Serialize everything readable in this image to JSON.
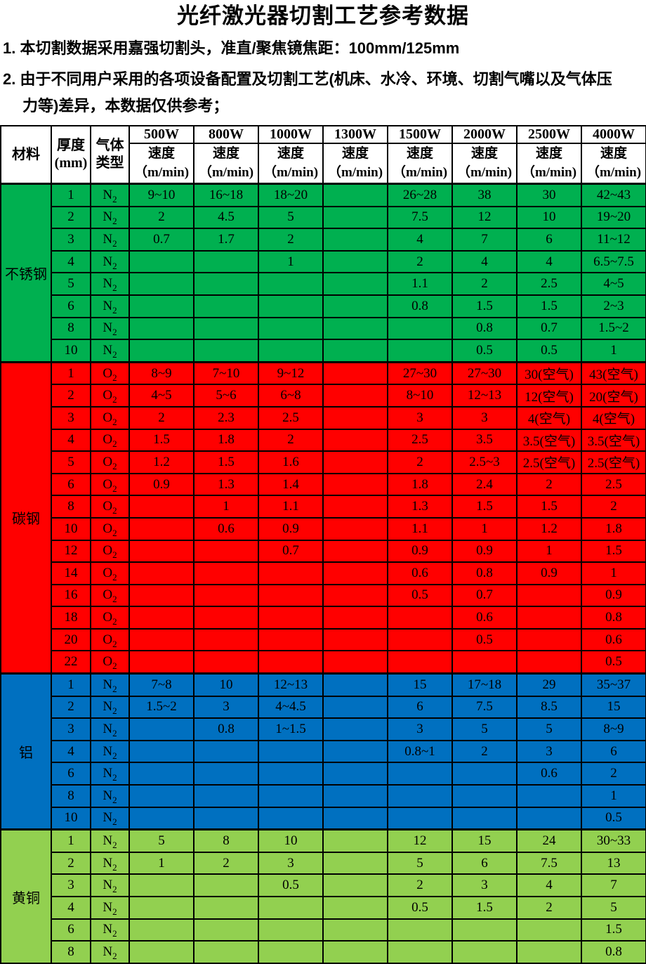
{
  "title": "光纤激光器切割工艺参考数据",
  "notes": [
    "1. 本切割数据采用嘉强切割头，准直/聚焦镜焦距：100mm/125mm",
    "2. 由于不同用户采用的各项设备配置及切割工艺(机床、水冷、环境、切割气嘴以及气体压\n力等)差异，本数据仅供参考；"
  ],
  "table": {
    "headers": {
      "material": "材料",
      "thickness": "厚度\n(mm)",
      "gas": "气体\n类型",
      "speed": "速度\n（m/min)"
    },
    "power_columns": [
      "500W",
      "800W",
      "1000W",
      "1300W",
      "1500W",
      "2000W",
      "2500W",
      "4000W"
    ],
    "sections": [
      {
        "material": "不锈钢",
        "color": "#00B050",
        "rows": [
          {
            "thickness": "1",
            "gas": "N2",
            "speeds": [
              "9~10",
              "16~18",
              "18~20",
              "",
              "26~28",
              "38",
              "30",
              "42~43"
            ]
          },
          {
            "thickness": "2",
            "gas": "N2",
            "speeds": [
              "2",
              "4.5",
              "5",
              "",
              "7.5",
              "12",
              "10",
              "19~20"
            ]
          },
          {
            "thickness": "3",
            "gas": "N2",
            "speeds": [
              "0.7",
              "1.7",
              "2",
              "",
              "4",
              "7",
              "6",
              "11~12"
            ]
          },
          {
            "thickness": "4",
            "gas": "N2",
            "speeds": [
              "",
              "",
              "1",
              "",
              "2",
              "4",
              "4",
              "6.5~7.5"
            ]
          },
          {
            "thickness": "5",
            "gas": "N2",
            "speeds": [
              "",
              "",
              "",
              "",
              "1.1",
              "2",
              "2.5",
              "4~5"
            ]
          },
          {
            "thickness": "6",
            "gas": "N2",
            "speeds": [
              "",
              "",
              "",
              "",
              "0.8",
              "1.5",
              "1.5",
              "2~3"
            ]
          },
          {
            "thickness": "8",
            "gas": "N2",
            "speeds": [
              "",
              "",
              "",
              "",
              "",
              "0.8",
              "0.7",
              "1.5~2"
            ]
          },
          {
            "thickness": "10",
            "gas": "N2",
            "speeds": [
              "",
              "",
              "",
              "",
              "",
              "0.5",
              "0.5",
              "1"
            ]
          }
        ]
      },
      {
        "material": "碳钢",
        "color": "#FF0000",
        "rows": [
          {
            "thickness": "1",
            "gas": "O2",
            "speeds": [
              "8~9",
              "7~10",
              "9~12",
              "",
              "27~30",
              "27~30",
              "30(空气)",
              "43(空气)"
            ]
          },
          {
            "thickness": "2",
            "gas": "O2",
            "speeds": [
              "4~5",
              "5~6",
              "6~8",
              "",
              "8~10",
              "12~13",
              "12(空气)",
              "20(空气)"
            ]
          },
          {
            "thickness": "3",
            "gas": "O2",
            "speeds": [
              "2",
              "2.3",
              "2.5",
              "",
              "3",
              "3",
              "4(空气)",
              "4(空气)"
            ]
          },
          {
            "thickness": "4",
            "gas": "O2",
            "speeds": [
              "1.5",
              "1.8",
              "2",
              "",
              "2.5",
              "3.5",
              "3.5(空气)",
              "3.5(空气)"
            ]
          },
          {
            "thickness": "5",
            "gas": "O2",
            "speeds": [
              "1.2",
              "1.5",
              "1.6",
              "",
              "2",
              "2.5~3",
              "2.5(空气)",
              "2.5(空气)"
            ]
          },
          {
            "thickness": "6",
            "gas": "O2",
            "speeds": [
              "0.9",
              "1.3",
              "1.4",
              "",
              "1.8",
              "2.4",
              "2",
              "2.5"
            ]
          },
          {
            "thickness": "8",
            "gas": "O2",
            "speeds": [
              "",
              "1",
              "1.1",
              "",
              "1.3",
              "1.5",
              "1.5",
              "2"
            ]
          },
          {
            "thickness": "10",
            "gas": "O2",
            "speeds": [
              "",
              "0.6",
              "0.9",
              "",
              "1.1",
              "1",
              "1.2",
              "1.8"
            ]
          },
          {
            "thickness": "12",
            "gas": "O2",
            "speeds": [
              "",
              "",
              "0.7",
              "",
              "0.9",
              "0.9",
              "1",
              "1.5"
            ]
          },
          {
            "thickness": "14",
            "gas": "O2",
            "speeds": [
              "",
              "",
              "",
              "",
              "0.6",
              "0.8",
              "0.9",
              "1"
            ]
          },
          {
            "thickness": "16",
            "gas": "O2",
            "speeds": [
              "",
              "",
              "",
              "",
              "0.5",
              "0.7",
              "",
              "0.9"
            ]
          },
          {
            "thickness": "18",
            "gas": "O2",
            "speeds": [
              "",
              "",
              "",
              "",
              "",
              "0.6",
              "",
              "0.8"
            ]
          },
          {
            "thickness": "20",
            "gas": "O2",
            "speeds": [
              "",
              "",
              "",
              "",
              "",
              "0.5",
              "",
              "0.6"
            ]
          },
          {
            "thickness": "22",
            "gas": "O2",
            "speeds": [
              "",
              "",
              "",
              "",
              "",
              "",
              "",
              "0.5"
            ]
          }
        ]
      },
      {
        "material": "铝",
        "color": "#0070C0",
        "rows": [
          {
            "thickness": "1",
            "gas": "N2",
            "speeds": [
              "7~8",
              "10",
              "12~13",
              "",
              "15",
              "17~18",
              "29",
              "35~37"
            ]
          },
          {
            "thickness": "2",
            "gas": "N2",
            "speeds": [
              "1.5~2",
              "3",
              "4~4.5",
              "",
              "6",
              "7.5",
              "8.5",
              "15"
            ]
          },
          {
            "thickness": "3",
            "gas": "N2",
            "speeds": [
              "",
              "0.8",
              "1~1.5",
              "",
              "3",
              "5",
              "5",
              "8~9"
            ]
          },
          {
            "thickness": "4",
            "gas": "N2",
            "speeds": [
              "",
              "",
              "",
              "",
              "0.8~1",
              "2",
              "3",
              "6"
            ]
          },
          {
            "thickness": "6",
            "gas": "N2",
            "speeds": [
              "",
              "",
              "",
              "",
              "",
              "",
              "0.6",
              "2"
            ]
          },
          {
            "thickness": "8",
            "gas": "N2",
            "speeds": [
              "",
              "",
              "",
              "",
              "",
              "",
              "",
              "1"
            ]
          },
          {
            "thickness": "10",
            "gas": "N2",
            "speeds": [
              "",
              "",
              "",
              "",
              "",
              "",
              "",
              "0.5"
            ]
          }
        ]
      },
      {
        "material": "黄铜",
        "color": "#92D050",
        "rows": [
          {
            "thickness": "1",
            "gas": "N2",
            "speeds": [
              "5",
              "8",
              "10",
              "",
              "12",
              "15",
              "24",
              "30~33"
            ]
          },
          {
            "thickness": "2",
            "gas": "N2",
            "speeds": [
              "1",
              "2",
              "3",
              "",
              "5",
              "6",
              "7.5",
              "13"
            ]
          },
          {
            "thickness": "3",
            "gas": "N2",
            "speeds": [
              "",
              "",
              "0.5",
              "",
              "2",
              "3",
              "4",
              "7"
            ]
          },
          {
            "thickness": "4",
            "gas": "N2",
            "speeds": [
              "",
              "",
              "",
              "",
              "0.5",
              "1.5",
              "2",
              "5"
            ]
          },
          {
            "thickness": "6",
            "gas": "N2",
            "speeds": [
              "",
              "",
              "",
              "",
              "",
              "",
              "",
              "1.5"
            ]
          },
          {
            "thickness": "8",
            "gas": "N2",
            "speeds": [
              "",
              "",
              "",
              "",
              "",
              "",
              "",
              "0.8"
            ]
          }
        ]
      }
    ]
  }
}
